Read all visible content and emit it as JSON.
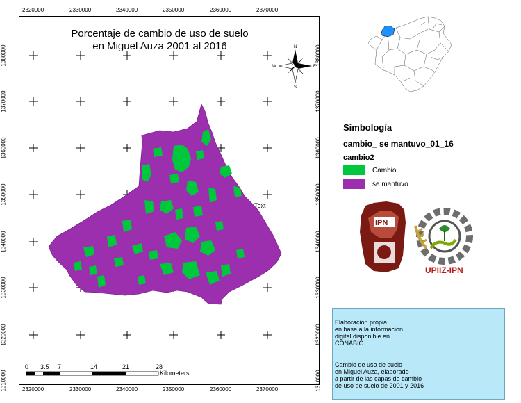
{
  "map": {
    "title_line1": "Porcentaje de cambio de uso de suelo",
    "title_line2": "en Miguel Auza 2001 al 2016",
    "x_ticks": [
      "2320000",
      "2330000",
      "2340000",
      "2350000",
      "2360000",
      "2370000"
    ],
    "y_ticks": [
      "1380000",
      "1370000",
      "1360000",
      "1350000",
      "1340000",
      "1330000",
      "1320000",
      "1310000"
    ],
    "annotation": "Text"
  },
  "compass": {
    "n": "N",
    "s": "S",
    "e": "E",
    "w": "W"
  },
  "legend": {
    "title": "Simbología",
    "layer": "cambio_ se mantuvo_01_16",
    "field": "cambio2",
    "items": [
      {
        "label": "Cambio",
        "color": "#00c83c"
      },
      {
        "label": "se mantuvo",
        "color": "#9b2fae"
      }
    ]
  },
  "scalebar": {
    "labels": [
      "0",
      "3.5",
      "7",
      "14",
      "21",
      "28"
    ],
    "unit": "Kilometers"
  },
  "logos": {
    "upiiz_text": "UPIIZ-IPN",
    "ipn_text": "IPN"
  },
  "info": {
    "para1": "Elaboracion      propia\nen base a la informacion\ndigital   disponible   en\nCONABIO",
    "para2": "      Cambio de uso de suelo\n      en Miguel Auza, elaborado\n a partir de las capas de cambio\nde uso de suelo de 2001 y 2016"
  }
}
